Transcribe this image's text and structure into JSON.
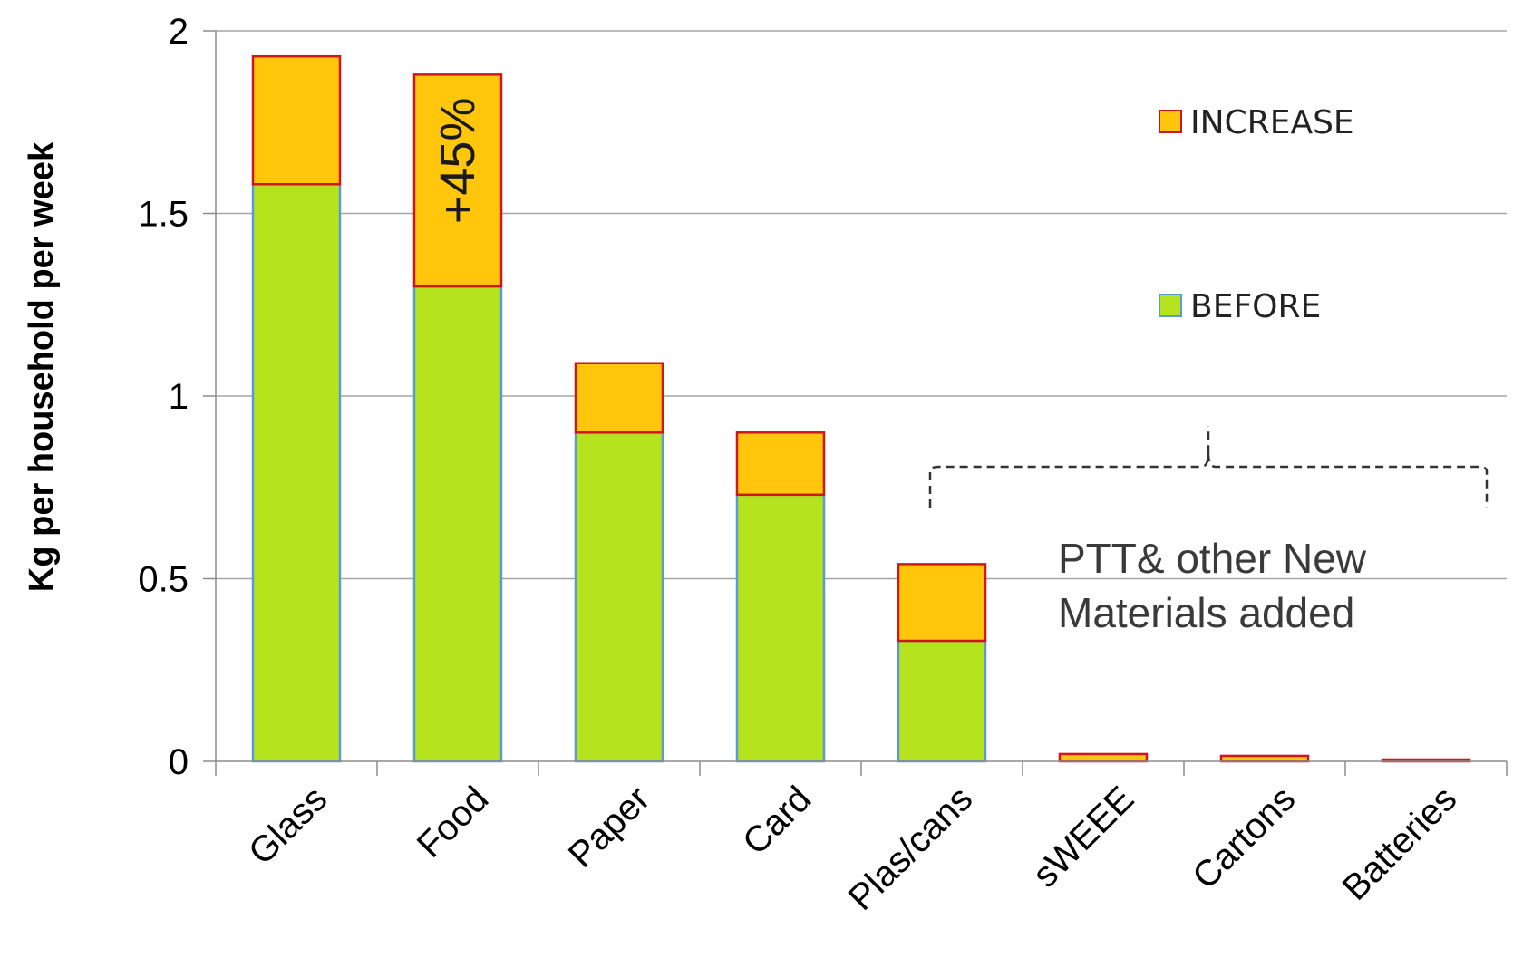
{
  "chart_data": {
    "type": "bar",
    "stacked": true,
    "categories": [
      "Glass",
      "Food",
      "Paper",
      "Card",
      "Plas/cans",
      "sWEEE",
      "Cartons",
      "Batteries"
    ],
    "series": [
      {
        "name": "BEFORE",
        "color": "#b5e31e",
        "border": "#5b9bd5",
        "values": [
          1.58,
          1.3,
          0.9,
          0.73,
          0.33,
          0.0,
          0.0,
          0.0
        ]
      },
      {
        "name": "INCREASE",
        "color": "#ffc60b",
        "border": "#d0161a",
        "values": [
          0.35,
          0.58,
          0.19,
          0.17,
          0.21,
          0.02,
          0.015,
          0.005
        ]
      }
    ],
    "ylabel": "Kg per household per week",
    "xlabel": "",
    "ylim": [
      0,
      2
    ],
    "yticks": [
      "0",
      "0.5",
      "1",
      "1.5",
      "2"
    ],
    "grid": true,
    "legend": [
      "INCREASE",
      "BEFORE"
    ],
    "legend_placement": "right",
    "annotations": {
      "bar_label": "+45%",
      "bracket_line1": "PTT& other New",
      "bracket_line2": "Materials added"
    }
  }
}
